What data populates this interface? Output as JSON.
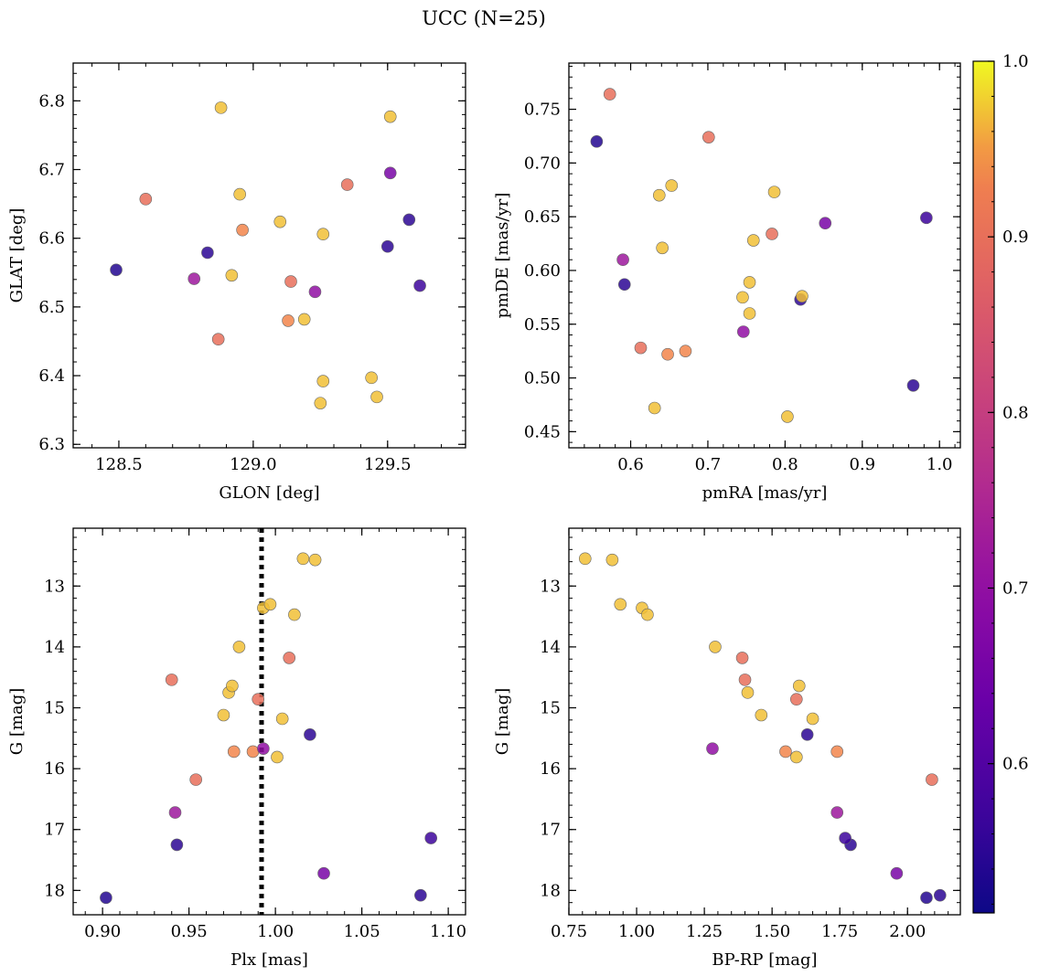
{
  "chart_data": {
    "title": "UCC (N=25)",
    "colorbar": {
      "colormap": "plasma",
      "range": [
        0.515,
        1.0
      ],
      "ticks": [
        "0.6",
        "0.7",
        "0.8",
        "0.9",
        "1.0"
      ]
    },
    "stars": {
      "glon": [
        128.49,
        128.6,
        128.78,
        128.83,
        128.87,
        128.88,
        128.92,
        128.95,
        128.96,
        129.1,
        129.13,
        129.14,
        129.19,
        129.23,
        129.25,
        129.26,
        129.26,
        129.35,
        129.44,
        129.46,
        129.5,
        129.51,
        129.51,
        129.58,
        129.62
      ],
      "glat": [
        6.554,
        6.657,
        6.541,
        6.579,
        6.453,
        6.79,
        6.546,
        6.664,
        6.612,
        6.624,
        6.48,
        6.537,
        6.482,
        6.522,
        6.36,
        6.606,
        6.392,
        6.678,
        6.397,
        6.369,
        6.588,
        6.777,
        6.695,
        6.627,
        6.531
      ],
      "pmra": [
        0.556,
        0.573,
        0.59,
        0.592,
        0.613,
        0.631,
        0.637,
        0.641,
        0.648,
        0.653,
        0.671,
        0.701,
        0.745,
        0.746,
        0.754,
        0.754,
        0.759,
        0.783,
        0.786,
        0.803,
        0.82,
        0.822,
        0.852,
        0.966,
        0.983
      ],
      "pmde": [
        0.72,
        0.764,
        0.61,
        0.587,
        0.528,
        0.472,
        0.67,
        0.621,
        0.522,
        0.679,
        0.525,
        0.724,
        0.575,
        0.543,
        0.589,
        0.56,
        0.628,
        0.634,
        0.673,
        0.464,
        0.573,
        0.576,
        0.644,
        0.493,
        0.649
      ],
      "plx": [
        0.902,
        0.94,
        0.942,
        0.943,
        0.954,
        0.97,
        0.973,
        0.975,
        0.976,
        0.979,
        0.987,
        0.99,
        0.993,
        0.993,
        0.997,
        1.001,
        1.004,
        1.008,
        1.011,
        1.016,
        1.02,
        1.023,
        1.028,
        1.084,
        1.09
      ],
      "g": [
        18.12,
        14.54,
        16.72,
        17.25,
        16.18,
        15.12,
        14.75,
        14.64,
        15.72,
        14.0,
        15.72,
        14.86,
        13.36,
        15.67,
        13.3,
        15.81,
        15.18,
        14.18,
        13.47,
        12.55,
        15.44,
        12.57,
        17.72,
        18.08,
        17.14
      ],
      "bprp": [
        2.07,
        1.4,
        1.74,
        1.79,
        2.09,
        1.46,
        1.41,
        1.6,
        1.55,
        1.29,
        1.74,
        1.59,
        1.02,
        1.28,
        0.94,
        1.59,
        1.65,
        1.39,
        1.04,
        0.81,
        1.63,
        0.91,
        1.96,
        2.12,
        1.77
      ],
      "prob": [
        0.54,
        0.9,
        0.72,
        0.55,
        0.9,
        0.97,
        0.97,
        0.97,
        0.94,
        0.97,
        0.94,
        0.9,
        0.97,
        0.7,
        0.97,
        0.97,
        0.97,
        0.9,
        0.97,
        0.97,
        0.55,
        0.97,
        0.66,
        0.55,
        0.57
      ]
    },
    "panels": [
      {
        "type": "scatter",
        "x_key": "glon",
        "y_key": "glat",
        "xlabel": "GLON [deg]",
        "ylabel": "GLAT [deg]",
        "xlim": [
          128.33,
          129.79
        ],
        "ylim": [
          6.295,
          6.855
        ],
        "y_inverted": false,
        "xticks": [
          128.5,
          129.0,
          129.5
        ],
        "xtick_labels": [
          "128.5",
          "129.0",
          "129.5"
        ],
        "yticks": [
          6.3,
          6.4,
          6.5,
          6.6,
          6.7,
          6.8
        ],
        "ytick_labels": [
          "6.3",
          "6.4",
          "6.5",
          "6.6",
          "6.7",
          "6.8"
        ]
      },
      {
        "type": "scatter",
        "x_key": "pmra",
        "y_key": "pmde",
        "xlabel": "pmRA [mas/yr]",
        "ylabel": "pmDE [mas/yr]",
        "xlim": [
          0.52,
          1.027
        ],
        "ylim": [
          0.435,
          0.793
        ],
        "y_inverted": false,
        "xticks": [
          0.6,
          0.7,
          0.8,
          0.9,
          1.0
        ],
        "xtick_labels": [
          "0.6",
          "0.7",
          "0.8",
          "0.9",
          "1.0"
        ],
        "yticks": [
          0.45,
          0.5,
          0.55,
          0.6,
          0.65,
          0.7,
          0.75
        ],
        "ytick_labels": [
          "0.45",
          "0.50",
          "0.55",
          "0.60",
          "0.65",
          "0.70",
          "0.75"
        ]
      },
      {
        "type": "scatter",
        "x_key": "plx",
        "y_key": "g",
        "xlabel": "Plx [mas]",
        "ylabel": "G [mag]",
        "xlim": [
          0.883,
          1.11
        ],
        "ylim": [
          12.05,
          18.4
        ],
        "y_inverted": true,
        "vline": 0.992,
        "xticks": [
          0.9,
          0.95,
          1.0,
          1.05,
          1.1
        ],
        "xtick_labels": [
          "0.90",
          "0.95",
          "1.00",
          "1.05",
          "1.10"
        ],
        "yticks": [
          13,
          14,
          15,
          16,
          17,
          18
        ],
        "ytick_labels": [
          "13",
          "14",
          "15",
          "16",
          "17",
          "18"
        ]
      },
      {
        "type": "scatter",
        "x_key": "bprp",
        "y_key": "g",
        "xlabel": "BP-RP [mag]",
        "ylabel": "G [mag]",
        "xlim": [
          0.75,
          2.195
        ],
        "ylim": [
          12.05,
          18.4
        ],
        "y_inverted": true,
        "xticks": [
          0.75,
          1.0,
          1.25,
          1.5,
          1.75,
          2.0
        ],
        "xtick_labels": [
          "0.75",
          "1.00",
          "1.25",
          "1.50",
          "1.75",
          "2.00"
        ],
        "yticks": [
          13,
          14,
          15,
          16,
          17,
          18
        ],
        "ytick_labels": [
          "13",
          "14",
          "15",
          "16",
          "17",
          "18"
        ]
      }
    ]
  }
}
